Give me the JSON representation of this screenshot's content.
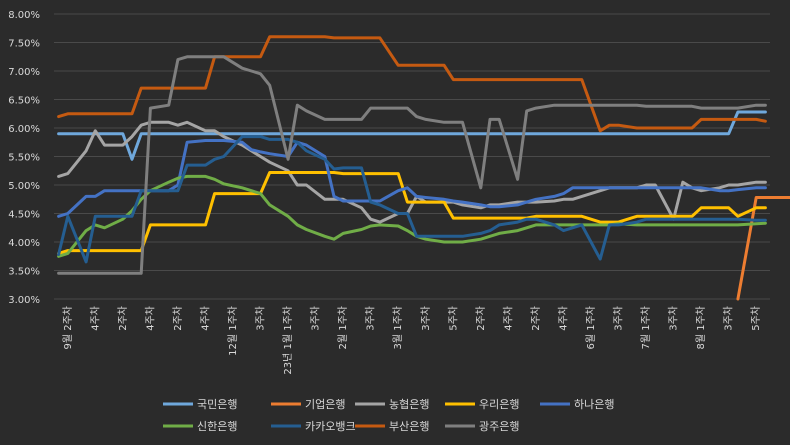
{
  "chart_data": {
    "type": "line",
    "title": "",
    "xlabel": "",
    "ylabel": "",
    "ylim": [
      3.0,
      8.0
    ],
    "y_ticks": [
      "3.00%",
      "3.50%",
      "4.00%",
      "4.50%",
      "5.00%",
      "5.50%",
      "6.00%",
      "6.50%",
      "7.00%",
      "7.50%",
      "8.00%"
    ],
    "grid": true,
    "legend_position": "bottom",
    "x_count": 60,
    "x_labels": [
      {
        "i": 1,
        "text": "9월 2주차"
      },
      {
        "i": 4,
        "text": "4주차"
      },
      {
        "i": 7,
        "text": "2주차"
      },
      {
        "i": 10,
        "text": "4주차"
      },
      {
        "i": 13,
        "text": "2주차"
      },
      {
        "i": 16,
        "text": "4주차"
      },
      {
        "i": 19,
        "text": "12월 1주차"
      },
      {
        "i": 22,
        "text": "3주차"
      },
      {
        "i": 25,
        "text": "23년 1월 1주차"
      },
      {
        "i": 28,
        "text": "3주차"
      },
      {
        "i": 31,
        "text": "2월 1주차"
      },
      {
        "i": 34,
        "text": "3주차"
      },
      {
        "i": 37,
        "text": "3월 1주차"
      },
      {
        "i": 40,
        "text": "3주차"
      },
      {
        "i": 43,
        "text": "5주차"
      },
      {
        "i": 46,
        "text": "2주차"
      },
      {
        "i": 49,
        "text": "4주차"
      },
      {
        "i": 52,
        "text": "2주차"
      },
      {
        "i": 55,
        "text": "4주차"
      },
      {
        "i": 58,
        "text": "6월 1주차"
      },
      {
        "i": 61,
        "text": "3주차"
      },
      {
        "i": 64,
        "text": "7월 1주차"
      },
      {
        "i": 67,
        "text": "3주차"
      },
      {
        "i": 70,
        "text": "8월 1주차"
      },
      {
        "i": 73,
        "text": "3주차"
      },
      {
        "i": 76,
        "text": "5주차"
      }
    ],
    "series": [
      {
        "name": "국민은행",
        "color": "#6fa8dc",
        "start": 0,
        "values": [
          5.9,
          5.9,
          5.9,
          5.9,
          5.9,
          5.9,
          5.45,
          5.9,
          5.9,
          5.9,
          5.9,
          5.9,
          5.9,
          5.9,
          5.9,
          5.9,
          5.9,
          5.9,
          5.9,
          5.9,
          5.9,
          5.9,
          5.9,
          5.9,
          5.9,
          5.9,
          5.9,
          5.9,
          5.9,
          5.9,
          5.9,
          5.9,
          5.9,
          5.9,
          5.9,
          5.9,
          5.9,
          5.9,
          5.9,
          5.9,
          5.9,
          5.9,
          5.9,
          5.9,
          5.9,
          5.9,
          5.9,
          5.9,
          5.9,
          5.9,
          5.9,
          5.9,
          5.9,
          5.9,
          5.9,
          5.9,
          5.9,
          6.28,
          6.28,
          6.28
        ]
      },
      {
        "name": "기업은행",
        "color": "#ed7d31",
        "start": 57,
        "values": [
          3.0,
          4.78,
          4.78,
          4.78,
          4.78
        ]
      },
      {
        "name": "농협은행",
        "color": "#a5a5a5",
        "start": 0,
        "values": [
          5.15,
          5.2,
          5.6,
          5.95,
          5.7,
          5.7,
          5.85,
          6.05,
          6.1,
          6.1,
          6.05,
          6.1,
          5.95,
          5.95,
          5.85,
          5.7,
          5.6,
          5.5,
          5.4,
          5.25,
          5.0,
          5.0,
          4.75,
          4.75,
          4.75,
          4.6,
          4.4,
          4.35,
          4.5,
          4.5,
          4.8,
          4.7,
          4.7,
          4.7,
          4.65,
          4.6,
          4.65,
          4.65,
          4.7,
          4.7,
          4.7,
          4.72,
          4.75,
          4.75,
          4.8,
          4.9,
          4.95,
          4.95,
          4.95,
          5.0,
          5.0,
          4.4,
          5.05,
          4.95,
          4.9,
          4.95,
          5.0,
          5.0,
          5.05,
          5.05
        ]
      },
      {
        "name": "우리은행",
        "color": "#ffc000",
        "start": 0,
        "values": [
          3.8,
          3.85,
          3.85,
          3.85,
          3.85,
          3.85,
          3.85,
          3.85,
          4.3,
          4.3,
          4.3,
          4.3,
          4.3,
          4.85,
          4.85,
          4.85,
          4.85,
          4.85,
          5.22,
          5.22,
          5.22,
          5.22,
          5.22,
          5.22,
          5.2,
          5.2,
          5.2,
          5.2,
          5.2,
          4.7,
          4.7,
          4.7,
          4.7,
          4.42,
          4.42,
          4.42,
          4.42,
          4.42,
          4.42,
          4.42,
          4.45,
          4.45,
          4.45,
          4.45,
          4.45,
          4.35,
          4.35,
          4.35,
          4.45,
          4.45,
          4.45,
          4.45,
          4.45,
          4.45,
          4.6,
          4.6,
          4.6,
          4.45,
          4.6,
          4.6
        ]
      },
      {
        "name": "하나은행",
        "color": "#4472c4",
        "start": 0,
        "values": [
          4.45,
          4.5,
          4.8,
          4.8,
          4.9,
          4.9,
          4.9,
          4.9,
          4.9,
          4.9,
          5.0,
          5.75,
          5.78,
          5.78,
          5.78,
          5.75,
          5.62,
          5.58,
          5.55,
          5.5,
          5.75,
          5.7,
          5.5,
          4.8,
          4.72,
          4.72,
          4.72,
          4.72,
          4.9,
          4.95,
          4.8,
          4.78,
          4.75,
          4.72,
          4.7,
          4.65,
          4.62,
          4.62,
          4.65,
          4.7,
          4.75,
          4.8,
          4.85,
          4.95,
          4.95,
          4.95,
          4.95,
          4.95,
          4.95,
          4.95,
          4.95,
          4.95,
          4.95,
          4.95,
          4.95,
          4.9,
          4.9,
          4.92,
          4.95,
          4.95
        ]
      },
      {
        "name": "신한은행",
        "color": "#70ad47",
        "start": 0,
        "values": [
          3.75,
          3.8,
          4.2,
          4.3,
          4.25,
          4.4,
          4.55,
          4.75,
          4.9,
          5.05,
          5.12,
          5.15,
          5.15,
          5.1,
          5.02,
          4.95,
          4.9,
          4.85,
          4.65,
          4.45,
          4.3,
          4.22,
          4.1,
          4.05,
          4.15,
          4.22,
          4.28,
          4.3,
          4.28,
          4.2,
          4.1,
          4.05,
          4.0,
          4.0,
          4.0,
          4.05,
          4.1,
          4.15,
          4.2,
          4.25,
          4.3,
          4.3,
          4.3,
          4.3,
          4.3,
          4.3,
          4.3,
          4.32,
          4.3,
          4.3,
          4.3,
          4.3,
          4.3,
          4.3,
          4.3,
          4.3,
          4.3,
          4.3,
          4.32,
          4.33
        ]
      },
      {
        "name": "카카오뱅크",
        "color": "#255e91",
        "start": 0,
        "values": [
          3.78,
          4.45,
          3.65,
          4.45,
          4.45,
          4.45,
          4.45,
          4.9,
          4.9,
          4.9,
          4.9,
          5.35,
          5.35,
          5.45,
          5.5,
          5.85,
          5.85,
          5.85,
          5.8,
          5.8,
          5.75,
          5.6,
          5.45,
          5.28,
          5.3,
          5.3,
          4.7,
          4.65,
          4.5,
          4.5,
          4.1,
          4.1,
          4.1,
          4.1,
          4.1,
          4.15,
          4.2,
          4.3,
          4.35,
          4.4,
          4.4,
          4.3,
          4.2,
          4.25,
          4.3,
          3.7,
          4.3,
          4.3,
          4.35,
          4.4,
          4.4,
          4.4,
          4.4,
          4.4,
          4.4,
          4.4,
          4.4,
          4.4,
          4.38,
          4.38
        ]
      },
      {
        "name": "부산은행",
        "color": "#c55a11",
        "start": 0,
        "values": [
          6.2,
          6.25,
          6.25,
          6.25,
          6.25,
          6.25,
          6.25,
          6.7,
          6.7,
          6.7,
          6.7,
          6.7,
          6.7,
          7.25,
          7.25,
          7.25,
          7.25,
          7.25,
          7.6,
          7.6,
          7.6,
          7.6,
          7.6,
          7.58,
          7.58,
          7.58,
          7.58,
          7.58,
          7.1,
          7.1,
          7.1,
          7.1,
          7.1,
          6.85,
          6.85,
          6.85,
          6.85,
          6.85,
          6.85,
          6.85,
          6.85,
          6.85,
          6.85,
          6.85,
          6.85,
          5.95,
          6.05,
          6.05,
          6.0,
          6.0,
          6.0,
          6.0,
          6.0,
          6.0,
          6.15,
          6.15,
          6.15,
          6.15,
          6.15,
          6.12
        ]
      },
      {
        "name": "광주은행",
        "color": "#7f7f7f",
        "start": 0,
        "values": [
          3.45,
          3.45,
          3.45,
          3.45,
          3.45,
          3.45,
          3.45,
          3.45,
          6.35,
          6.4,
          7.2,
          7.25,
          7.25,
          7.25,
          7.25,
          7.05,
          7.0,
          6.95,
          6.75,
          5.45,
          6.4,
          6.3,
          6.15,
          6.15,
          6.15,
          6.15,
          6.35,
          6.35,
          6.35,
          6.35,
          6.2,
          6.15,
          6.1,
          6.1,
          6.1,
          4.95,
          6.15,
          6.15,
          5.1,
          6.3,
          6.35,
          6.4,
          6.4,
          6.4,
          6.4,
          6.4,
          6.4,
          6.4,
          6.4,
          6.38,
          6.38,
          6.38,
          6.38,
          6.38,
          6.35,
          6.35,
          6.35,
          6.35,
          6.4,
          6.4
        ]
      }
    ]
  }
}
